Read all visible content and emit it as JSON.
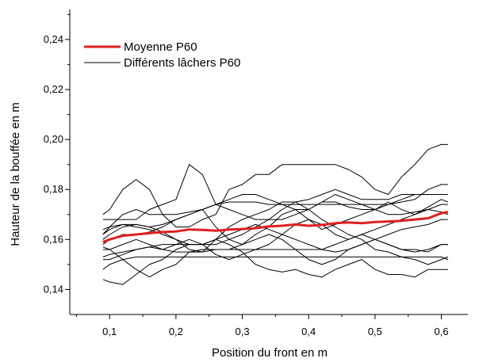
{
  "chart_data": {
    "type": "line",
    "xlabel": "Position du front en m",
    "ylabel": "Hauteur de la bouffée en m",
    "xlim": [
      0.04,
      0.64
    ],
    "ylim": [
      0.13,
      0.252
    ],
    "x_ticks": [
      0.1,
      0.2,
      0.3,
      0.4,
      0.5,
      0.6
    ],
    "x_tick_labels": [
      "0,1",
      "0,2",
      "0,3",
      "0,4",
      "0,5",
      "0,6"
    ],
    "y_ticks": [
      0.14,
      0.16,
      0.18,
      0.2,
      0.22,
      0.24
    ],
    "y_tick_labels": [
      "0,14",
      "0,16",
      "0,18",
      "0,20",
      "0,22",
      "0,24"
    ],
    "legend_position": "top-left",
    "legend": [
      {
        "label": "Moyenne P60",
        "color": "#e02020"
      },
      {
        "label": "Différents lâchers P60",
        "color": "#000000"
      }
    ],
    "x": [
      0.09,
      0.1,
      0.12,
      0.14,
      0.16,
      0.18,
      0.2,
      0.22,
      0.24,
      0.26,
      0.28,
      0.3,
      0.32,
      0.34,
      0.36,
      0.38,
      0.4,
      0.42,
      0.44,
      0.46,
      0.48,
      0.5,
      0.52,
      0.54,
      0.56,
      0.58,
      0.6,
      0.61
    ],
    "series": [
      {
        "role": "mean",
        "color": "#e02020",
        "values": [
          0.159,
          0.16,
          0.1615,
          0.162,
          0.1625,
          0.163,
          0.1632,
          0.164,
          0.1638,
          0.1635,
          0.164,
          0.1642,
          0.1645,
          0.1652,
          0.1655,
          0.166,
          0.1655,
          0.1658,
          0.1665,
          0.1668,
          0.1665,
          0.167,
          0.1672,
          0.1675,
          0.168,
          0.1685,
          0.1705,
          0.171
        ]
      },
      {
        "role": "run",
        "color": "#000000",
        "values": [
          0.168,
          0.168,
          0.168,
          0.168,
          0.172,
          0.174,
          0.176,
          0.19,
          0.186,
          0.174,
          0.172,
          0.17,
          0.168,
          0.168,
          0.168,
          0.17,
          0.172,
          0.175,
          0.175,
          0.173,
          0.172,
          0.172,
          0.174,
          0.175,
          0.176,
          0.18,
          0.182,
          0.182
        ]
      },
      {
        "role": "run",
        "color": "#000000",
        "values": [
          0.17,
          0.172,
          0.18,
          0.184,
          0.18,
          0.17,
          0.165,
          0.165,
          0.168,
          0.17,
          0.18,
          0.182,
          0.186,
          0.186,
          0.19,
          0.19,
          0.19,
          0.19,
          0.19,
          0.188,
          0.185,
          0.18,
          0.178,
          0.185,
          0.19,
          0.196,
          0.198,
          0.198
        ]
      },
      {
        "role": "run",
        "color": "#000000",
        "values": [
          0.162,
          0.165,
          0.17,
          0.172,
          0.17,
          0.17,
          0.17,
          0.171,
          0.172,
          0.174,
          0.175,
          0.175,
          0.175,
          0.174,
          0.174,
          0.174,
          0.174,
          0.174,
          0.174,
          0.174,
          0.174,
          0.174,
          0.174,
          0.176,
          0.178,
          0.178,
          0.178,
          0.178
        ]
      },
      {
        "role": "run",
        "color": "#000000",
        "values": [
          0.158,
          0.16,
          0.162,
          0.162,
          0.163,
          0.165,
          0.168,
          0.17,
          0.172,
          0.165,
          0.16,
          0.158,
          0.162,
          0.165,
          0.17,
          0.172,
          0.168,
          0.164,
          0.166,
          0.168,
          0.17,
          0.172,
          0.175,
          0.172,
          0.17,
          0.173,
          0.176,
          0.175
        ]
      },
      {
        "role": "run",
        "color": "#000000",
        "values": [
          0.156,
          0.156,
          0.158,
          0.16,
          0.158,
          0.156,
          0.158,
          0.16,
          0.158,
          0.154,
          0.152,
          0.154,
          0.156,
          0.158,
          0.162,
          0.166,
          0.168,
          0.166,
          0.162,
          0.16,
          0.162,
          0.164,
          0.166,
          0.168,
          0.17,
          0.172,
          0.174,
          0.174
        ]
      },
      {
        "role": "run",
        "color": "#000000",
        "values": [
          0.153,
          0.154,
          0.155,
          0.156,
          0.157,
          0.158,
          0.158,
          0.158,
          0.158,
          0.158,
          0.16,
          0.162,
          0.165,
          0.168,
          0.172,
          0.175,
          0.172,
          0.168,
          0.165,
          0.162,
          0.16,
          0.156,
          0.155,
          0.153,
          0.152,
          0.15,
          0.152,
          0.153
        ]
      },
      {
        "role": "run",
        "color": "#000000",
        "values": [
          0.152,
          0.152,
          0.154,
          0.156,
          0.157,
          0.156,
          0.155,
          0.155,
          0.156,
          0.156,
          0.156,
          0.156,
          0.156,
          0.156,
          0.156,
          0.156,
          0.156,
          0.156,
          0.158,
          0.16,
          0.162,
          0.16,
          0.158,
          0.156,
          0.156,
          0.155,
          0.158,
          0.158
        ]
      },
      {
        "role": "run",
        "color": "#000000",
        "values": [
          0.148,
          0.15,
          0.152,
          0.153,
          0.153,
          0.153,
          0.153,
          0.153,
          0.153,
          0.153,
          0.153,
          0.153,
          0.153,
          0.153,
          0.153,
          0.153,
          0.153,
          0.153,
          0.153,
          0.153,
          0.153,
          0.153,
          0.153,
          0.153,
          0.153,
          0.153,
          0.153,
          0.152
        ]
      },
      {
        "role": "run",
        "color": "#000000",
        "values": [
          0.144,
          0.143,
          0.142,
          0.146,
          0.15,
          0.152,
          0.156,
          0.158,
          0.158,
          0.16,
          0.158,
          0.155,
          0.15,
          0.148,
          0.147,
          0.148,
          0.146,
          0.145,
          0.148,
          0.15,
          0.152,
          0.148,
          0.146,
          0.146,
          0.145,
          0.148,
          0.148,
          0.148
        ]
      },
      {
        "role": "run",
        "color": "#000000",
        "values": [
          0.157,
          0.156,
          0.152,
          0.148,
          0.145,
          0.148,
          0.15,
          0.155,
          0.155,
          0.16,
          0.165,
          0.168,
          0.17,
          0.172,
          0.175,
          0.175,
          0.176,
          0.178,
          0.18,
          0.178,
          0.176,
          0.176,
          0.176,
          0.178,
          0.178,
          0.178,
          0.178,
          0.178
        ]
      },
      {
        "role": "run",
        "color": "#000000",
        "values": [
          0.16,
          0.162,
          0.165,
          0.166,
          0.165,
          0.166,
          0.168,
          0.17,
          0.172,
          0.174,
          0.176,
          0.178,
          0.178,
          0.176,
          0.174,
          0.172,
          0.172,
          0.175,
          0.178,
          0.176,
          0.174,
          0.172,
          0.17,
          0.17,
          0.171,
          0.172,
          0.171,
          0.17
        ]
      },
      {
        "role": "run",
        "color": "#000000",
        "values": [
          0.162,
          0.164,
          0.166,
          0.165,
          0.164,
          0.162,
          0.16,
          0.158,
          0.158,
          0.16,
          0.162,
          0.164,
          0.166,
          0.164,
          0.162,
          0.16,
          0.158,
          0.156,
          0.155,
          0.156,
          0.158,
          0.16,
          0.162,
          0.164,
          0.165,
          0.166,
          0.168,
          0.168
        ]
      },
      {
        "role": "run",
        "color": "#000000",
        "values": [
          0.164,
          0.165,
          0.166,
          0.166,
          0.165,
          0.163,
          0.16,
          0.156,
          0.155,
          0.156,
          0.156,
          0.158,
          0.16,
          0.162,
          0.16,
          0.156,
          0.152,
          0.15,
          0.152,
          0.156,
          0.158,
          0.16,
          0.158,
          0.156,
          0.155,
          0.156,
          0.158,
          0.158
        ]
      }
    ]
  }
}
